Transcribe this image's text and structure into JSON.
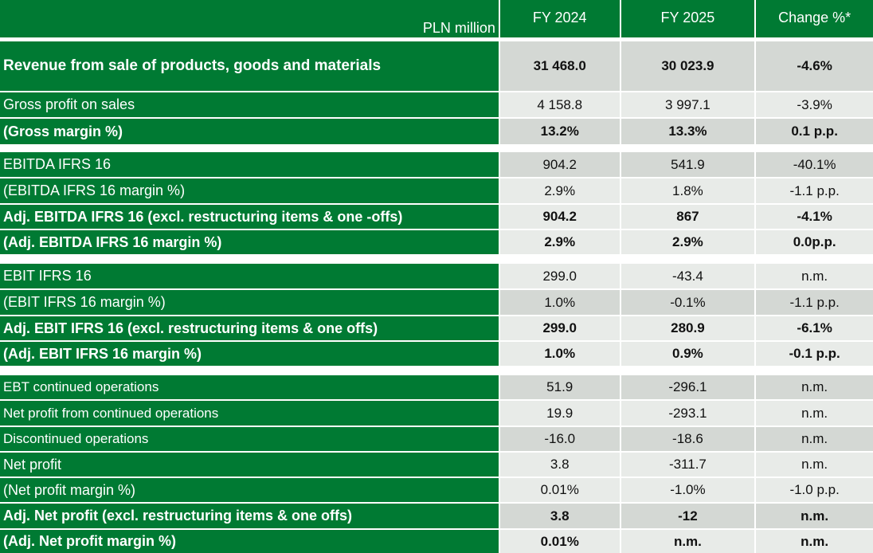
{
  "header": {
    "unit": "PLN million",
    "columns": [
      "FY 2024",
      "FY 2025",
      "Change %*"
    ]
  },
  "colors": {
    "green": "#007a33",
    "gray_light": "#e8ebe8",
    "gray_dark": "#d4d8d4"
  },
  "rows": [
    {
      "label": "Revenue from sale of products, goods and materials",
      "fy2024": "31 468.0",
      "fy2025": "30 023.9",
      "change": "-4.6%"
    },
    {
      "label": "Gross profit on sales",
      "fy2024": "4 158.8",
      "fy2025": "3 997.1",
      "change": "-3.9%"
    },
    {
      "label": "(Gross margin %)",
      "fy2024": "13.2%",
      "fy2025": "13.3%",
      "change": "0.1 p.p."
    },
    {
      "label": "EBITDA IFRS 16",
      "fy2024": "904.2",
      "fy2025": "541.9",
      "change": "-40.1%"
    },
    {
      "label": "(EBITDA IFRS 16 margin %)",
      "fy2024": "2.9%",
      "fy2025": "1.8%",
      "change": "-1.1 p.p."
    },
    {
      "label": "Adj. EBITDA IFRS 16 (excl. restructuring items & one -offs)",
      "fy2024": "904.2",
      "fy2025": "867",
      "change": "-4.1%"
    },
    {
      "label": "(Adj. EBITDA IFRS 16 margin %)",
      "fy2024": "2.9%",
      "fy2025": "2.9%",
      "change": "0.0p.p."
    },
    {
      "label": "EBIT IFRS 16",
      "fy2024": "299.0",
      "fy2025": "-43.4",
      "change": "n.m."
    },
    {
      "label": "(EBIT IFRS 16 margin %)",
      "fy2024": "1.0%",
      "fy2025": "-0.1%",
      "change": "-1.1 p.p."
    },
    {
      "label": "Adj. EBIT IFRS 16 (excl. restructuring items & one offs)",
      "fy2024": "299.0",
      "fy2025": "280.9",
      "change": "-6.1%"
    },
    {
      "label": "(Adj. EBIT IFRS 16 margin %)",
      "fy2024": "1.0%",
      "fy2025": "0.9%",
      "change": "-0.1 p.p."
    },
    {
      "label": "EBT continued operations",
      "fy2024": "51.9",
      "fy2025": "-296.1",
      "change": "n.m."
    },
    {
      "label": "Net profit from continued operations",
      "fy2024": "19.9",
      "fy2025": "-293.1",
      "change": "n.m."
    },
    {
      "label": "Discontinued operations",
      "fy2024": "-16.0",
      "fy2025": "-18.6",
      "change": "n.m."
    },
    {
      "label": "Net profit",
      "fy2024": "3.8",
      "fy2025": "-311.7",
      "change": "n.m."
    },
    {
      "label": "(Net profit margin %)",
      "fy2024": "0.01%",
      "fy2025": "-1.0%",
      "change": "-1.0 p.p."
    },
    {
      "label": "Adj. Net profit (excl. restructuring items & one offs)",
      "fy2024": "3.8",
      "fy2025": "-12",
      "change": "n.m."
    },
    {
      "label": "(Adj. Net profit margin %)",
      "fy2024": "0.01%",
      "fy2025": "n.m.",
      "change": "n.m."
    }
  ]
}
